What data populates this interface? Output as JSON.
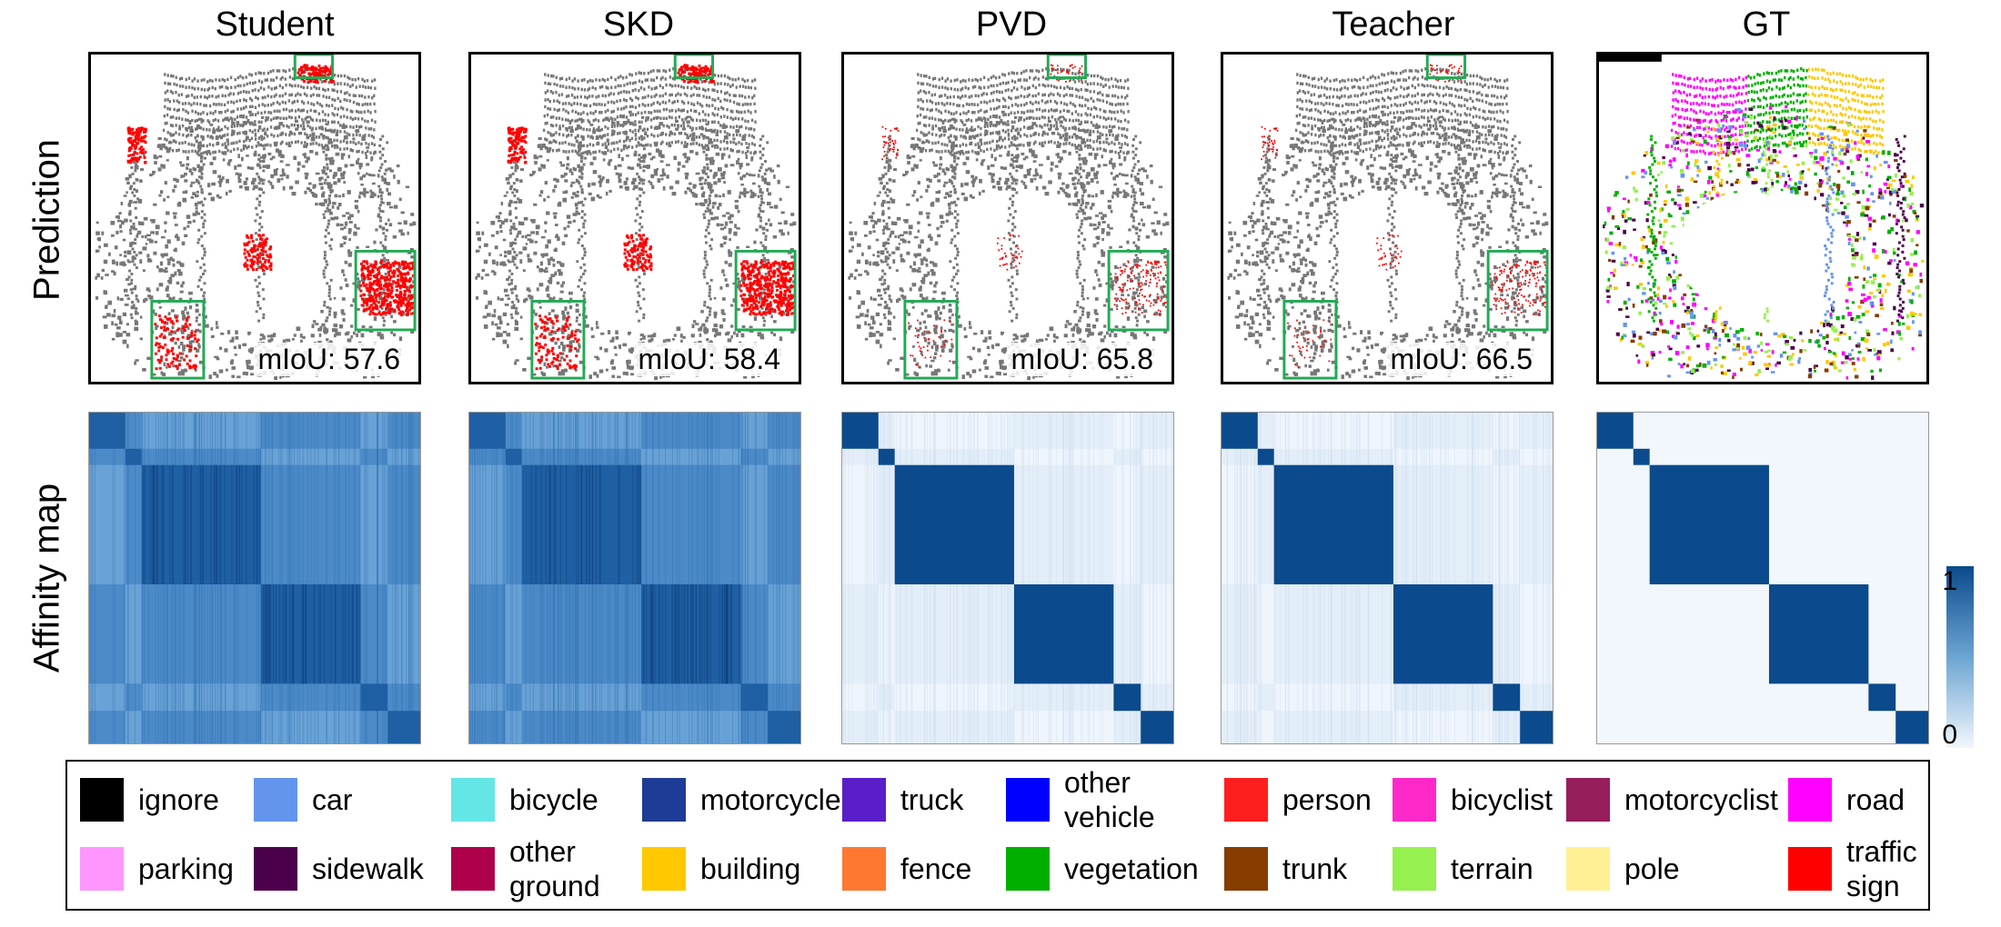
{
  "columns": [
    {
      "title": "Student",
      "miou": "mIoU: 57.6",
      "noise": "high"
    },
    {
      "title": "SKD",
      "miou": "mIoU: 58.4",
      "noise": "high"
    },
    {
      "title": "PVD",
      "miou": "mIoU: 65.8",
      "noise": "low"
    },
    {
      "title": "Teacher",
      "miou": "mIoU: 66.5",
      "noise": "low"
    },
    {
      "title": "GT",
      "miou": "",
      "noise": "none"
    }
  ],
  "row_labels": {
    "prediction": "Prediction",
    "affinity": "Affinity map"
  },
  "colorbar": {
    "max_label": "1",
    "min_label": "0",
    "high_color": "#0b4a8c",
    "low_color": "#f2f7fd"
  },
  "highlight_color": "#22aa55",
  "error_color": "#ff0000",
  "correct_color": "#777777",
  "legend": [
    {
      "label": "ignore",
      "color": "#000000"
    },
    {
      "label": "car",
      "color": "#6495ed"
    },
    {
      "label": "bicycle",
      "color": "#64e6e6"
    },
    {
      "label": "motorcycle",
      "color": "#1e3c96"
    },
    {
      "label": "truck",
      "color": "#5a1ec8"
    },
    {
      "label": "other\nvehicle",
      "color": "#0000ff"
    },
    {
      "label": "person",
      "color": "#ff1e1e"
    },
    {
      "label": "bicyclist",
      "color": "#ff28c8"
    },
    {
      "label": "motorcyclist",
      "color": "#961e5a"
    },
    {
      "label": "road",
      "color": "#ff00ff"
    },
    {
      "label": "parking",
      "color": "#ff96ff"
    },
    {
      "label": "sidewalk",
      "color": "#4b004b"
    },
    {
      "label": "other\nground",
      "color": "#af004b"
    },
    {
      "label": "building",
      "color": "#ffc800"
    },
    {
      "label": "fence",
      "color": "#ff7832"
    },
    {
      "label": "vegetation",
      "color": "#00af00"
    },
    {
      "label": "trunk",
      "color": "#873c00"
    },
    {
      "label": "terrain",
      "color": "#96f050"
    },
    {
      "label": "pole",
      "color": "#fff096"
    },
    {
      "label": "traffic\nsign",
      "color": "#ff0000"
    }
  ]
}
